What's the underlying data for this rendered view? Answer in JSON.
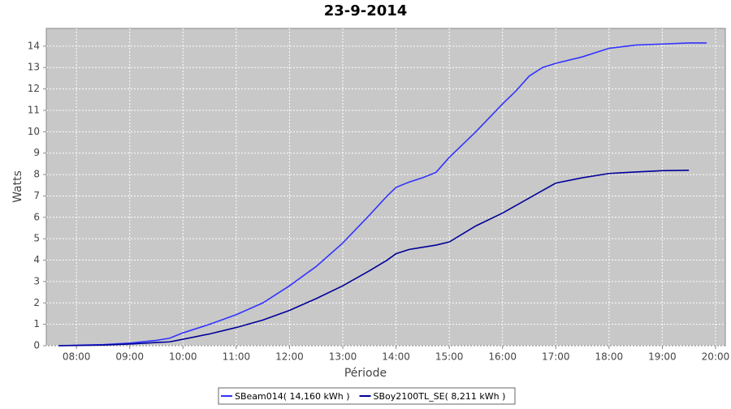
{
  "chart_data": {
    "type": "line",
    "title": "23-9-2014",
    "xlabel": "Période",
    "ylabel": "Watts",
    "x": [
      "07:40",
      "08:00",
      "08:30",
      "09:00",
      "09:30",
      "09:45",
      "10:00",
      "10:30",
      "11:00",
      "11:30",
      "12:00",
      "12:30",
      "13:00",
      "13:30",
      "13:50",
      "14:00",
      "14:15",
      "14:30",
      "14:45",
      "15:00",
      "15:30",
      "16:00",
      "16:15",
      "16:30",
      "16:45",
      "17:00",
      "17:30",
      "18:00",
      "18:30",
      "19:00",
      "19:30",
      "19:50"
    ],
    "series": [
      {
        "name": "SBeam014( 14,160 kWh )",
        "color": "#3333ff",
        "values": [
          0,
          0.02,
          0.05,
          0.12,
          0.25,
          0.35,
          0.6,
          1.0,
          1.45,
          2.0,
          2.8,
          3.7,
          4.8,
          6.1,
          7.0,
          7.4,
          7.65,
          7.85,
          8.1,
          8.8,
          10.0,
          11.3,
          11.9,
          12.6,
          13.0,
          13.2,
          13.5,
          13.9,
          14.05,
          14.1,
          14.15,
          14.15
        ]
      },
      {
        "name": "SBoy2100TL_SE( 8,211 kWh )",
        "color": "#000099",
        "values": [
          0,
          0.01,
          0.03,
          0.08,
          0.15,
          0.18,
          0.3,
          0.55,
          0.85,
          1.2,
          1.65,
          2.2,
          2.8,
          3.5,
          4.0,
          4.3,
          4.5,
          4.6,
          4.7,
          4.85,
          5.6,
          6.2,
          6.55,
          6.9,
          7.25,
          7.6,
          7.85,
          8.05,
          8.12,
          8.18,
          8.2,
          null
        ]
      }
    ],
    "xlim": [
      "07:26",
      "20:11"
    ],
    "xticks": [
      "08:00",
      "09:00",
      "10:00",
      "11:00",
      "12:00",
      "13:00",
      "14:00",
      "15:00",
      "16:00",
      "17:00",
      "18:00",
      "19:00",
      "20:00"
    ],
    "ylim": [
      0,
      14.83
    ],
    "yticks": [
      0,
      1,
      2,
      3,
      4,
      5,
      6,
      7,
      8,
      9,
      10,
      11,
      12,
      13,
      14
    ],
    "grid": true,
    "legend": "bottom"
  }
}
